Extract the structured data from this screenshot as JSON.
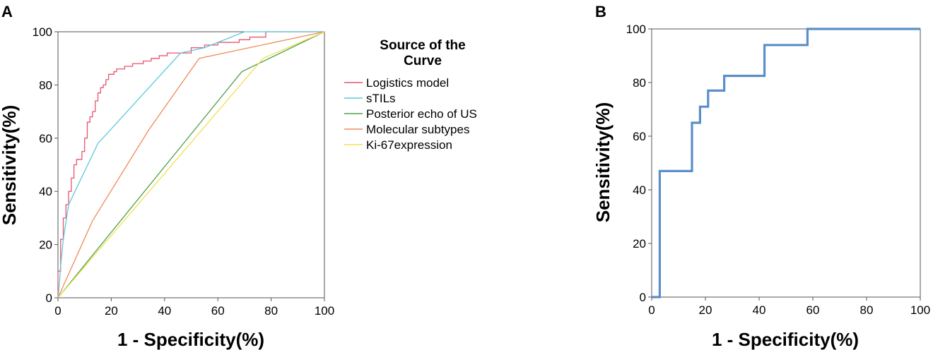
{
  "chart_data": [
    {
      "panel": "A",
      "type": "line",
      "xlabel": "1 - Specificity(%)",
      "ylabel": "Sensitivity(%)",
      "xlim": [
        0,
        100
      ],
      "ylim": [
        0,
        100
      ],
      "xticks": [
        "0",
        "20",
        "40",
        "60",
        "80",
        "100"
      ],
      "yticks": [
        "0",
        "20",
        "40",
        "60",
        "80",
        "100"
      ],
      "grid": false,
      "legend": {
        "title": "Source of the Curve",
        "title_lines": [
          "Source of the",
          "Curve"
        ],
        "placement": "right"
      },
      "series": [
        {
          "name": "Logistics model",
          "color": "#e8546e",
          "x": [
            0,
            0,
            1,
            1,
            2,
            2,
            3,
            3,
            4,
            4,
            5,
            5,
            6,
            6,
            7,
            7,
            9,
            9,
            10,
            10,
            11,
            11,
            12,
            12,
            13,
            13,
            14,
            14,
            15,
            15,
            16,
            16,
            17,
            17,
            18,
            18,
            19,
            19,
            21,
            21,
            22,
            22,
            25,
            25,
            28,
            28,
            32,
            32,
            35,
            35,
            38,
            38,
            41,
            41,
            50,
            50,
            55,
            55,
            60,
            60,
            68,
            68,
            72,
            72,
            78,
            78,
            100
          ],
          "y": [
            0,
            10,
            10,
            22,
            22,
            30,
            30,
            35,
            35,
            40,
            40,
            45,
            45,
            50,
            50,
            52,
            52,
            55,
            55,
            60,
            60,
            66,
            66,
            68,
            68,
            70,
            70,
            74,
            74,
            77,
            77,
            79,
            79,
            80,
            80,
            82,
            82,
            84,
            84,
            85,
            85,
            86,
            86,
            87,
            87,
            88,
            88,
            89,
            89,
            90,
            90,
            91,
            91,
            92,
            92,
            94,
            94,
            95,
            95,
            96,
            96,
            97,
            97,
            98,
            98,
            100,
            100
          ]
        },
        {
          "name": "sTILs",
          "color": "#5bc8d8",
          "x": [
            0,
            0.5,
            1,
            2,
            4,
            15,
            46,
            55,
            70,
            100
          ],
          "y": [
            0,
            5,
            12,
            22,
            35,
            58,
            92,
            94,
            100,
            100
          ]
        },
        {
          "name": "Posterior echo of US",
          "color": "#4fa04a",
          "x": [
            0,
            69,
            100
          ],
          "y": [
            0,
            85,
            100
          ]
        },
        {
          "name": "Molecular subtypes",
          "color": "#f08a56",
          "x": [
            0,
            13,
            34,
            53,
            100
          ],
          "y": [
            0,
            29,
            63,
            90,
            100
          ]
        },
        {
          "name": "Ki-67expression",
          "color": "#f0e050",
          "x": [
            0,
            77,
            100
          ],
          "y": [
            0,
            90,
            100
          ]
        }
      ]
    },
    {
      "panel": "B",
      "type": "line",
      "xlabel": "1 - Specificity(%)",
      "ylabel": "Sensitivity(%)",
      "xlim": [
        0,
        100
      ],
      "ylim": [
        0,
        100
      ],
      "xticks": [
        "0",
        "20",
        "40",
        "60",
        "80",
        "100"
      ],
      "yticks": [
        "0",
        "20",
        "40",
        "60",
        "80",
        "100"
      ],
      "grid": false,
      "series": [
        {
          "color": "#5b8fc9",
          "x": [
            0,
            3,
            3,
            15,
            15,
            18,
            18,
            21,
            21,
            27,
            27,
            42,
            42,
            58,
            58,
            100
          ],
          "y": [
            0,
            0,
            47,
            47,
            65,
            65,
            71,
            71,
            77,
            77,
            82.5,
            82.5,
            94,
            94,
            100,
            100
          ]
        }
      ]
    }
  ]
}
